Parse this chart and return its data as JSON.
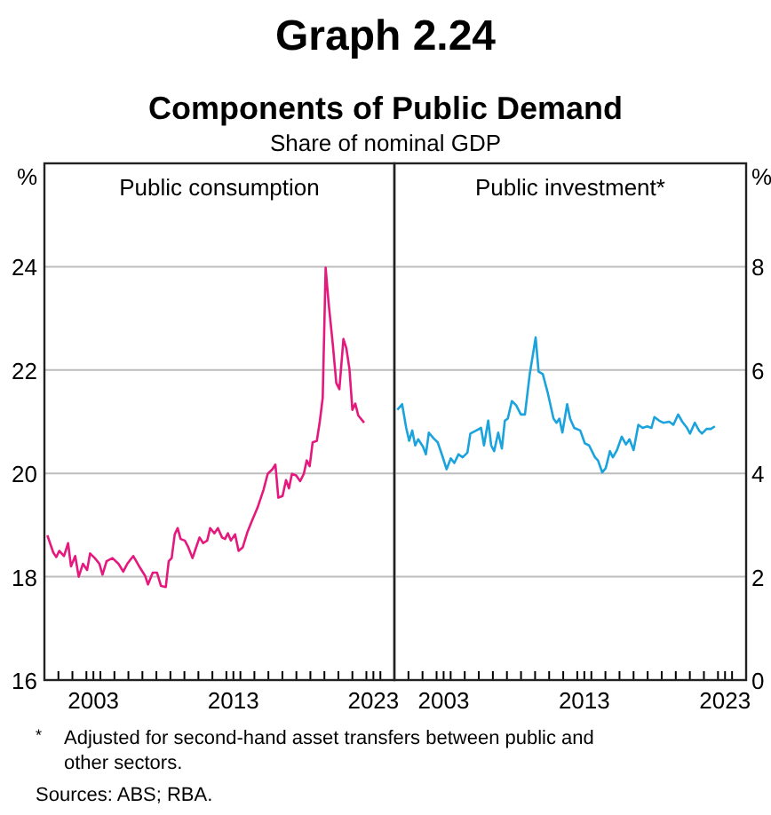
{
  "chart_data": [
    {
      "type": "line",
      "title": "Public consumption",
      "ylabel": "%",
      "grid": "y",
      "annotations": [
        "Graph 2.24",
        "Components of Public Demand",
        "Share of nominal GDP",
        "* Adjusted for second-hand asset transfers between public and other sectors.",
        "Sources: ABS; RBA."
      ],
      "xlim": [
        1999.5,
        2024.5
      ],
      "ylim": [
        16,
        26
      ],
      "yticks": [
        16,
        18,
        20,
        22,
        24
      ],
      "xticks": [
        {
          "value": 2000.5,
          "label": null
        },
        {
          "value": 2001.5,
          "label": null
        },
        {
          "value": 2002.5,
          "label": null
        },
        {
          "value": 2003.5,
          "label": null
        },
        {
          "value": 2004.5,
          "label": null
        },
        {
          "value": 2005.5,
          "label": null
        },
        {
          "value": 2006.5,
          "label": null
        },
        {
          "value": 2007.5,
          "label": null
        },
        {
          "value": 2008.5,
          "label": null
        },
        {
          "value": 2009.5,
          "label": null
        },
        {
          "value": 2010.5,
          "label": null
        },
        {
          "value": 2011.5,
          "label": null
        },
        {
          "value": 2012.5,
          "label": null
        },
        {
          "value": 2013.5,
          "label": null
        },
        {
          "value": 2014.5,
          "label": null
        },
        {
          "value": 2015.5,
          "label": null
        },
        {
          "value": 2016.5,
          "label": null
        },
        {
          "value": 2017.5,
          "label": null
        },
        {
          "value": 2018.5,
          "label": null
        },
        {
          "value": 2019.5,
          "label": null
        },
        {
          "value": 2020.5,
          "label": null
        },
        {
          "value": 2021.5,
          "label": null
        },
        {
          "value": 2022.5,
          "label": null
        },
        {
          "value": 2023.5,
          "label": null
        },
        2003,
        2013,
        2023
      ],
      "series": [
        {
          "color": "#e5197d",
          "x": [
            1999.71,
            2000.13,
            2000.35,
            2000.56,
            2000.9,
            2001.19,
            2001.4,
            2001.7,
            2001.95,
            2002.25,
            2002.55,
            2002.76,
            2003.1,
            2003.43,
            2003.65,
            2003.94,
            2004.36,
            2004.79,
            2005.13,
            2005.42,
            2005.85,
            2006.27,
            2006.69,
            2006.9,
            2007.24,
            2007.54,
            2007.83,
            2008.17,
            2008.38,
            2008.59,
            2008.81,
            2009.02,
            2009.23,
            2009.53,
            2009.78,
            2010.08,
            2010.29,
            2010.58,
            2010.84,
            2011.13,
            2011.34,
            2011.64,
            2011.89,
            2012.19,
            2012.4,
            2012.61,
            2012.82,
            2013.12,
            2013.37,
            2013.67,
            2014.01,
            2014.31,
            2014.73,
            2015.15,
            2015.45,
            2015.79,
            2016.0,
            2016.21,
            2016.51,
            2016.76,
            2016.97,
            2017.18,
            2017.48,
            2017.77,
            2018.03,
            2018.24,
            2018.45,
            2018.66,
            2018.96,
            2019.17,
            2019.38,
            2019.59,
            2019.8,
            2020.1,
            2020.35,
            2020.57,
            2020.86,
            2021.07,
            2021.29,
            2021.5,
            2021.71,
            2021.92,
            2022.34
          ],
          "values": [
            18.8,
            18.47,
            18.38,
            18.5,
            18.4,
            18.65,
            18.2,
            18.4,
            18.0,
            18.25,
            18.13,
            18.45,
            18.36,
            18.25,
            18.04,
            18.3,
            18.36,
            18.25,
            18.1,
            18.25,
            18.4,
            18.2,
            18.02,
            17.85,
            18.08,
            18.08,
            17.82,
            17.8,
            18.3,
            18.36,
            18.82,
            18.94,
            18.73,
            18.7,
            18.57,
            18.36,
            18.53,
            18.76,
            18.65,
            18.7,
            18.94,
            18.84,
            18.94,
            18.76,
            18.73,
            18.84,
            18.7,
            18.82,
            18.5,
            18.57,
            18.87,
            19.07,
            19.34,
            19.68,
            19.99,
            20.08,
            20.17,
            19.53,
            19.56,
            19.87,
            19.71,
            19.99,
            19.96,
            19.85,
            19.99,
            20.25,
            20.14,
            20.6,
            20.63,
            21.0,
            21.46,
            23.98,
            23.3,
            22.5,
            21.75,
            21.63,
            22.6,
            22.42,
            22.02,
            21.23,
            21.35,
            21.12,
            20.98
          ]
        }
      ]
    },
    {
      "type": "line",
      "title": "Public investment*",
      "ylabel": "%",
      "grid": "y",
      "xlim": [
        1999.5,
        2024.5
      ],
      "ylim": [
        0,
        10
      ],
      "yticks": [
        0,
        2,
        4,
        6,
        8
      ],
      "xticks": [
        {
          "value": 2000.5,
          "label": null
        },
        {
          "value": 2001.5,
          "label": null
        },
        {
          "value": 2002.5,
          "label": null
        },
        {
          "value": 2003.5,
          "label": null
        },
        {
          "value": 2004.5,
          "label": null
        },
        {
          "value": 2005.5,
          "label": null
        },
        {
          "value": 2006.5,
          "label": null
        },
        {
          "value": 2007.5,
          "label": null
        },
        {
          "value": 2008.5,
          "label": null
        },
        {
          "value": 2009.5,
          "label": null
        },
        {
          "value": 2010.5,
          "label": null
        },
        {
          "value": 2011.5,
          "label": null
        },
        {
          "value": 2012.5,
          "label": null
        },
        {
          "value": 2013.5,
          "label": null
        },
        {
          "value": 2014.5,
          "label": null
        },
        {
          "value": 2015.5,
          "label": null
        },
        {
          "value": 2016.5,
          "label": null
        },
        {
          "value": 2017.5,
          "label": null
        },
        {
          "value": 2018.5,
          "label": null
        },
        {
          "value": 2019.5,
          "label": null
        },
        {
          "value": 2020.5,
          "label": null
        },
        {
          "value": 2021.5,
          "label": null
        },
        {
          "value": 2022.5,
          "label": null
        },
        {
          "value": 2023.5,
          "label": null
        },
        2003,
        2013,
        2023
      ],
      "series": [
        {
          "color": "#1aa3dc",
          "x": [
            1999.71,
            2000.05,
            2000.34,
            2000.55,
            2000.77,
            2000.98,
            2001.19,
            2001.53,
            2001.74,
            2001.95,
            2002.28,
            2002.58,
            2002.92,
            2003.21,
            2003.51,
            2003.76,
            2004.06,
            2004.35,
            2004.69,
            2004.9,
            2005.32,
            2005.66,
            2005.87,
            2006.17,
            2006.38,
            2006.59,
            2006.88,
            2007.14,
            2007.35,
            2007.56,
            2007.85,
            2008.15,
            2008.49,
            2008.78,
            2009.12,
            2009.54,
            2009.75,
            2010.05,
            2010.39,
            2010.81,
            2011.02,
            2011.23,
            2011.44,
            2011.78,
            2011.99,
            2012.28,
            2012.71,
            2013.04,
            2013.34,
            2013.76,
            2013.97,
            2014.27,
            2014.52,
            2014.82,
            2015.03,
            2015.32,
            2015.66,
            2015.96,
            2016.21,
            2016.5,
            2016.84,
            2017.14,
            2017.47,
            2017.77,
            2017.98,
            2018.32,
            2018.61,
            2019.04,
            2019.33,
            2019.67,
            2019.96,
            2020.3,
            2020.51,
            2020.85,
            2021.15,
            2021.36,
            2021.69,
            2021.99,
            2022.28
          ],
          "values": [
            5.23,
            5.34,
            4.88,
            4.63,
            4.83,
            4.54,
            4.66,
            4.52,
            4.37,
            4.79,
            4.68,
            4.6,
            4.33,
            4.08,
            4.29,
            4.2,
            4.37,
            4.31,
            4.4,
            4.77,
            4.83,
            4.88,
            4.54,
            5.02,
            4.54,
            4.43,
            4.79,
            4.48,
            5.02,
            5.06,
            5.4,
            5.32,
            5.14,
            5.14,
            5.92,
            6.63,
            5.97,
            5.92,
            5.57,
            5.06,
            4.98,
            5.06,
            4.79,
            5.34,
            5.06,
            4.88,
            4.83,
            4.58,
            4.54,
            4.31,
            4.25,
            4.02,
            4.1,
            4.43,
            4.31,
            4.45,
            4.71,
            4.56,
            4.66,
            4.45,
            4.94,
            4.88,
            4.91,
            4.88,
            5.09,
            5.02,
            4.98,
            5.0,
            4.94,
            5.14,
            5.0,
            4.88,
            4.77,
            4.98,
            4.83,
            4.77,
            4.86,
            4.86,
            4.91
          ]
        }
      ]
    }
  ]
}
